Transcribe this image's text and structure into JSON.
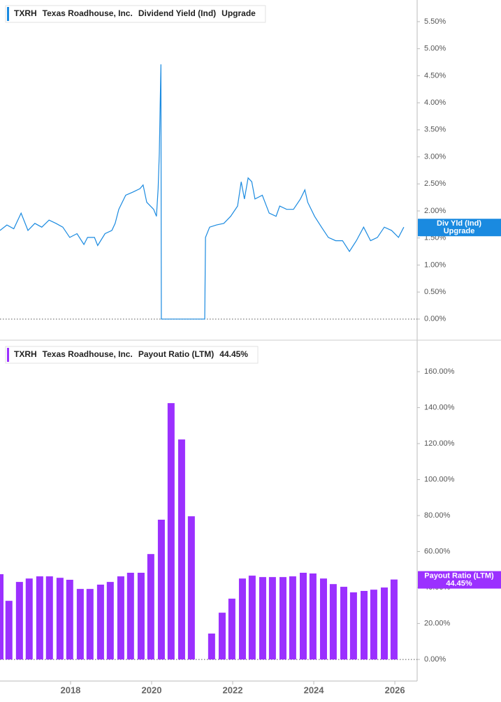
{
  "chart_data": [
    {
      "type": "line",
      "ticker": "TXRH",
      "company": "Texas Roadhouse, Inc.",
      "metric": "Dividend Yield (Ind)",
      "status": "Upgrade",
      "tag": "Div Yld (Ind)",
      "color": "#1a8ae0",
      "x": [
        2016.26,
        2016.43,
        2016.6,
        2016.78,
        2016.95,
        2017.12,
        2017.29,
        2017.47,
        2017.64,
        2017.81,
        2017.98,
        2018.16,
        2018.33,
        2018.42,
        2018.59,
        2018.67,
        2018.85,
        2019.02,
        2019.1,
        2019.19,
        2019.36,
        2019.54,
        2019.71,
        2019.79,
        2019.88,
        2020.05,
        2020.12,
        2020.16,
        2020.19,
        2020.21,
        2020.23,
        2020.24,
        2020.74,
        2021.31,
        2021.33,
        2021.43,
        2021.6,
        2021.78,
        2021.95,
        2022.12,
        2022.21,
        2022.29,
        2022.38,
        2022.47,
        2022.55,
        2022.73,
        2022.9,
        2023.07,
        2023.16,
        2023.33,
        2023.5,
        2023.67,
        2023.78,
        2023.85,
        2024.02,
        2024.19,
        2024.36,
        2024.54,
        2024.71,
        2024.88,
        2025.05,
        2025.23,
        2025.4,
        2025.57,
        2025.74,
        2025.92,
        2026.09,
        2026.22
      ],
      "values": [
        1.64,
        1.74,
        1.67,
        1.96,
        1.64,
        1.77,
        1.7,
        1.83,
        1.77,
        1.7,
        1.51,
        1.58,
        1.38,
        1.51,
        1.51,
        1.36,
        1.58,
        1.64,
        1.77,
        2.03,
        2.29,
        2.35,
        2.41,
        2.48,
        2.16,
        2.03,
        1.9,
        2.41,
        3.06,
        3.96,
        4.71,
        0,
        0,
        0,
        1.51,
        1.7,
        1.74,
        1.77,
        1.9,
        2.09,
        2.54,
        2.22,
        2.61,
        2.54,
        2.22,
        2.29,
        1.96,
        1.9,
        2.09,
        2.03,
        2.03,
        2.22,
        2.39,
        2.16,
        1.9,
        1.7,
        1.51,
        1.45,
        1.45,
        1.25,
        1.45,
        1.7,
        1.45,
        1.51,
        1.7,
        1.64,
        1.51,
        1.7
      ],
      "xlim": [
        2016.26,
        2026.55
      ],
      "ylim": [
        -0.17,
        5.9
      ],
      "yticks": [
        {
          "value": 0,
          "label": "0.00%"
        },
        {
          "value": 0.5,
          "label": "0.50%"
        },
        {
          "value": 1,
          "label": "1.00%"
        },
        {
          "value": 1.5,
          "label": "1.50%"
        },
        {
          "value": 2,
          "label": "2.00%"
        },
        {
          "value": 2.5,
          "label": "2.50%"
        },
        {
          "value": 3,
          "label": "3.00%"
        },
        {
          "value": 3.5,
          "label": "3.50%"
        },
        {
          "value": 4,
          "label": "4.00%"
        },
        {
          "value": 4.5,
          "label": "4.50%"
        },
        {
          "value": 5,
          "label": "5.00%"
        },
        {
          "value": 5.5,
          "label": "5.50%"
        }
      ]
    },
    {
      "type": "bar",
      "ticker": "TXRH",
      "company": "Texas Roadhouse, Inc.",
      "metric": "Payout Ratio (LTM)",
      "status": "44.45%",
      "tag": "Payout Ratio (LTM)",
      "color": "#9b30ff",
      "x": [
        2016.26,
        2016.48,
        2016.74,
        2016.98,
        2017.24,
        2017.48,
        2017.74,
        2017.98,
        2018.24,
        2018.48,
        2018.74,
        2018.98,
        2019.24,
        2019.48,
        2019.74,
        2019.98,
        2020.24,
        2020.48,
        2020.74,
        2020.98,
        2021.48,
        2021.74,
        2021.98,
        2022.24,
        2022.48,
        2022.74,
        2022.98,
        2023.24,
        2023.48,
        2023.74,
        2023.98,
        2024.24,
        2024.48,
        2024.74,
        2024.98,
        2025.24,
        2025.48,
        2025.74,
        2025.98
      ],
      "values": [
        47.4,
        32.6,
        43.1,
        45.0,
        46.2,
        46.2,
        45.4,
        44.3,
        39.2,
        39.2,
        41.6,
        43.1,
        46.2,
        48.2,
        48.2,
        58.6,
        77.7,
        142.5,
        122.3,
        79.6,
        14.4,
        26.0,
        33.8,
        45.0,
        46.6,
        45.8,
        45.8,
        45.8,
        46.2,
        48.2,
        47.8,
        45.0,
        41.9,
        40.4,
        37.3,
        38.1,
        38.8,
        40.0,
        44.45
      ],
      "xlim": [
        2016.26,
        2026.55
      ],
      "ylim": [
        -12,
        177.5
      ],
      "xticks": [
        2018,
        2020,
        2022,
        2024,
        2026
      ],
      "yticks": [
        {
          "value": 0,
          "label": "0.00%"
        },
        {
          "value": 20,
          "label": "20.00%"
        },
        {
          "value": 40,
          "label": "40.00%"
        },
        {
          "value": 60,
          "label": "60.00%"
        },
        {
          "value": 80,
          "label": "80.00%"
        },
        {
          "value": 100,
          "label": "100.00%"
        },
        {
          "value": 120,
          "label": "120.00%"
        },
        {
          "value": 140,
          "label": "140.00%"
        },
        {
          "value": 160,
          "label": "160.00%"
        }
      ]
    }
  ]
}
